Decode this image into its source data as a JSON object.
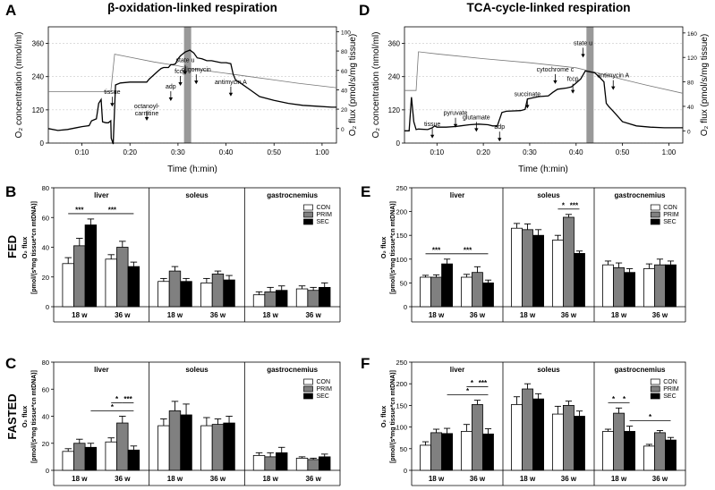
{
  "colors": {
    "CON": "#ffffff",
    "PRIM": "#808080",
    "SEC": "#000000",
    "event_bar": "#999999"
  },
  "chart_data": [
    {
      "id": "A",
      "type": "line",
      "title": "β-oxidation-linked respiration",
      "xlabel": "Time (h:min)",
      "ylabel": "O₂ concentration (nmol/ml)",
      "ylabel2": "O₂ flux (pmol/s/mg tissue)",
      "xlim": [
        3,
        63
      ],
      "ylim": [
        0,
        420
      ],
      "y2lim": [
        -15,
        105
      ],
      "xticks": [
        10,
        20,
        30,
        40,
        50,
        60
      ],
      "xticklabels": [
        "0:10",
        "0:20",
        "0:30",
        "0:40",
        "0:50",
        "1:00"
      ],
      "yticks": [
        0,
        120,
        240,
        360
      ],
      "yticklabels": [
        "0",
        "120",
        "240",
        "360"
      ],
      "y2ticks": [
        0,
        20,
        40,
        60,
        80,
        100
      ],
      "y2ticklabels": [
        "0",
        "20",
        "40",
        "60",
        "80",
        "100"
      ],
      "event_bar": {
        "x": 32
      },
      "annotations": [
        {
          "label": "tissue",
          "x": 16.3,
          "y": 177
        },
        {
          "label": "octanoyl-",
          "x": 23.5,
          "y": 126,
          "label2": "carnitine"
        },
        {
          "label": "adp",
          "x": 28.5,
          "y": 197
        },
        {
          "label": "fccp",
          "x": 30.5,
          "y": 252
        },
        {
          "label": "state u",
          "x": 31.5,
          "y": 292
        },
        {
          "label": "oligomycin",
          "x": 33.8,
          "y": 258
        },
        {
          "label": "antimycin A",
          "x": 41,
          "y": 214
        }
      ],
      "series": [
        {
          "name": "O2 concentration",
          "axis": "left",
          "x": [
            3,
            16,
            16.8,
            20,
            25,
            30,
            33,
            40,
            45,
            50,
            55,
            63
          ],
          "y": [
            186,
            186,
            321,
            310,
            293,
            279,
            268,
            252,
            240,
            228,
            216,
            200
          ]
        },
        {
          "name": "O2 flux",
          "axis": "right",
          "x": [
            3,
            5,
            7,
            9,
            10,
            11.5,
            12,
            13,
            13.5,
            14,
            14.3,
            15,
            15.5,
            16,
            16.1,
            16.5,
            17,
            18,
            20,
            22,
            23.5,
            24,
            26,
            26.5,
            27,
            28,
            28.5,
            29,
            29.5,
            30,
            30.5,
            31,
            31.5,
            32.5,
            33.3,
            34,
            35,
            36,
            37,
            38,
            39,
            40,
            41,
            41.5,
            42,
            43,
            45,
            47,
            50,
            53,
            56,
            59,
            62,
            63
          ],
          "y": [
            0,
            -2,
            -1,
            1,
            2,
            3,
            8,
            10,
            26,
            30,
            7,
            6,
            6,
            8,
            -10,
            -16,
            45,
            47,
            48,
            48,
            48,
            51,
            60,
            62,
            63,
            63,
            66,
            66,
            67,
            72,
            75,
            77,
            79,
            81,
            78,
            73,
            72,
            70,
            70,
            69,
            68,
            68,
            67,
            56,
            50,
            47,
            40,
            33,
            29,
            26,
            24,
            23,
            22,
            22
          ]
        }
      ]
    },
    {
      "id": "D",
      "type": "line",
      "title": "TCA-cycle-linked respiration",
      "xlabel": "Time (h:min)",
      "ylabel": "O₂ concentration (nmol/ml)",
      "ylabel2": "O₂ flux (pmol/s/mg tissue)",
      "xlim": [
        3,
        63
      ],
      "ylim": [
        0,
        420
      ],
      "y2lim": [
        -20,
        170
      ],
      "xticks": [
        10,
        20,
        30,
        40,
        50,
        60
      ],
      "xticklabels": [
        "0:10",
        "0:20",
        "0:30",
        "0:40",
        "0:50",
        "1:00"
      ],
      "yticks": [
        0,
        120,
        240,
        360
      ],
      "yticklabels": [
        "0",
        "120",
        "240",
        "360"
      ],
      "y2ticks": [
        0,
        40,
        80,
        120,
        160
      ],
      "y2ticklabels": [
        "0",
        "40",
        "80",
        "120",
        "160"
      ],
      "event_bar": {
        "x": 43
      },
      "annotations": [
        {
          "label": "tissue",
          "x": 9,
          "y": 62
        },
        {
          "label": "pyruvate",
          "x": 14,
          "y": 101
        },
        {
          "label": "glutamate",
          "x": 18.5,
          "y": 86
        },
        {
          "label": "adp",
          "x": 23.5,
          "y": 51
        },
        {
          "label": "succinate",
          "x": 29.5,
          "y": 170
        },
        {
          "label": "cytochrome c",
          "x": 35.5,
          "y": 259
        },
        {
          "label": "fccp",
          "x": 39.3,
          "y": 224
        },
        {
          "label": "state u",
          "x": 41.5,
          "y": 354
        },
        {
          "label": "antimycin A",
          "x": 48,
          "y": 237
        }
      ],
      "series": [
        {
          "name": "O2 concentration",
          "axis": "left",
          "x": [
            3,
            5.5,
            6,
            10,
            20,
            30,
            40,
            45,
            50,
            55,
            63
          ],
          "y": [
            190,
            190,
            330,
            322,
            305,
            290,
            272,
            252,
            230,
            210,
            180
          ]
        },
        {
          "name": "O2 flux",
          "axis": "right",
          "x": [
            3,
            4,
            4.5,
            5,
            5.5,
            6,
            8,
            9,
            9.5,
            10,
            12,
            14,
            15,
            17,
            19,
            21,
            22,
            23,
            24,
            25,
            28,
            29,
            29.5,
            30,
            32,
            34,
            35,
            36,
            38,
            39,
            40,
            41,
            42,
            44,
            45,
            46,
            46.5,
            47,
            48,
            50,
            53,
            56,
            59,
            62,
            63
          ],
          "y": [
            0,
            0,
            55,
            15,
            2,
            3,
            2,
            5,
            8,
            6,
            6,
            7,
            8,
            10,
            11,
            10,
            8,
            8,
            30,
            32,
            33,
            35,
            52,
            53,
            56,
            57,
            63,
            68,
            70,
            72,
            78,
            85,
            98,
            95,
            88,
            80,
            45,
            40,
            32,
            15,
            8,
            6,
            5,
            5,
            5
          ]
        }
      ]
    },
    {
      "id": "B",
      "row": "FED",
      "type": "bar",
      "ylabel": "O₂ flux",
      "ylabel2": "[pmol/(s*mg tissue*cn mtDNA)]",
      "ylim": [
        0,
        80
      ],
      "yticks": [
        0,
        20,
        40,
        60,
        80
      ],
      "yticklabels": [
        "0",
        "20",
        "40",
        "60",
        "80"
      ],
      "tissues": [
        "liver",
        "soleus",
        "gastrocnemius"
      ],
      "categories": [
        "18 w",
        "36 w"
      ],
      "legend": [
        "CON",
        "PRIM",
        "SEC"
      ],
      "series": [
        {
          "name": "CON",
          "values": [
            [
              29,
              32
            ],
            [
              17,
              16
            ],
            [
              8,
              12
            ]
          ],
          "errors": [
            [
              4,
              3
            ],
            [
              2,
              3
            ],
            [
              2,
              2
            ]
          ]
        },
        {
          "name": "PRIM",
          "values": [
            [
              41,
              40
            ],
            [
              24,
              22
            ],
            [
              10,
              11
            ]
          ],
          "errors": [
            [
              5,
              4
            ],
            [
              3,
              2
            ],
            [
              3,
              2
            ]
          ]
        },
        {
          "name": "SEC",
          "values": [
            [
              55,
              27
            ],
            [
              17,
              18
            ],
            [
              11,
              13
            ]
          ],
          "errors": [
            [
              4,
              3
            ],
            [
              2,
              3
            ],
            [
              3,
              3
            ]
          ]
        }
      ],
      "significance": [
        {
          "label": "***",
          "tissue": 0,
          "from": [
            0,
            0
          ],
          "to": [
            0,
            2
          ]
        },
        {
          "label": "***",
          "tissue": 0,
          "from": [
            0,
            2
          ],
          "to": [
            1,
            2
          ]
        }
      ]
    },
    {
      "id": "E",
      "row": "FED",
      "type": "bar",
      "ylabel": "O₂ flux",
      "ylabel2": "[pmol/(s*mg tissue*cn mtDNA)]",
      "ylim": [
        0,
        250
      ],
      "yticks": [
        0,
        50,
        100,
        150,
        200,
        250
      ],
      "yticklabels": [
        "0",
        "50",
        "100",
        "150",
        "200",
        "250"
      ],
      "tissues": [
        "liver",
        "soleus",
        "gastrocnemius"
      ],
      "categories": [
        "18 w",
        "36 w"
      ],
      "legend": [
        "CON",
        "PRIM",
        "SEC"
      ],
      "series": [
        {
          "name": "CON",
          "values": [
            [
              62,
              62
            ],
            [
              165,
              140
            ],
            [
              88,
              80
            ]
          ],
          "errors": [
            [
              4,
              6
            ],
            [
              10,
              10
            ],
            [
              8,
              10
            ]
          ]
        },
        {
          "name": "PRIM",
          "values": [
            [
              62,
              72
            ],
            [
              162,
              188
            ],
            [
              82,
              88
            ]
          ],
          "errors": [
            [
              5,
              12
            ],
            [
              12,
              6
            ],
            [
              10,
              12
            ]
          ]
        },
        {
          "name": "SEC",
          "values": [
            [
              90,
              50
            ],
            [
              150,
              112
            ],
            [
              72,
              88
            ]
          ],
          "errors": [
            [
              10,
              6
            ],
            [
              12,
              5
            ],
            [
              8,
              8
            ]
          ]
        }
      ],
      "significance": [
        {
          "label": "***",
          "tissue": 0,
          "from": [
            0,
            0
          ],
          "to": [
            0,
            2
          ]
        },
        {
          "label": "***",
          "tissue": 0,
          "from": [
            0,
            2
          ],
          "to": [
            1,
            2
          ]
        },
        {
          "label": "*",
          "tissue": 1,
          "from": [
            1,
            0
          ],
          "to": [
            1,
            1
          ]
        },
        {
          "label": "***",
          "tissue": 1,
          "from": [
            1,
            1
          ],
          "to": [
            1,
            2
          ]
        }
      ]
    },
    {
      "id": "C",
      "row": "FASTED",
      "type": "bar",
      "ylabel": "O₂ flux",
      "ylabel2": "[pmol/(s*mg tissue*cn mtDNA)]",
      "ylim": [
        0,
        80
      ],
      "yticks": [
        0,
        20,
        40,
        60,
        80
      ],
      "yticklabels": [
        "0",
        "20",
        "40",
        "60",
        "80"
      ],
      "tissues": [
        "liver",
        "soleus",
        "gastrocnemius"
      ],
      "categories": [
        "18 w",
        "36 w"
      ],
      "legend": [
        "CON",
        "PRIM",
        "SEC"
      ],
      "series": [
        {
          "name": "CON",
          "values": [
            [
              14,
              21
            ],
            [
              33,
              33
            ],
            [
              11,
              9
            ]
          ],
          "errors": [
            [
              2,
              3
            ],
            [
              5,
              6
            ],
            [
              2,
              1
            ]
          ]
        },
        {
          "name": "PRIM",
          "values": [
            [
              20,
              35
            ],
            [
              44,
              34
            ],
            [
              10,
              8
            ]
          ],
          "errors": [
            [
              3,
              5
            ],
            [
              7,
              4
            ],
            [
              3,
              1
            ]
          ]
        },
        {
          "name": "SEC",
          "values": [
            [
              17,
              15
            ],
            [
              41,
              35
            ],
            [
              13,
              10
            ]
          ],
          "errors": [
            [
              3,
              3
            ],
            [
              8,
              5
            ],
            [
              4,
              2
            ]
          ]
        }
      ],
      "significance": [
        {
          "label": "*",
          "tissue": 0,
          "from": [
            0,
            2
          ],
          "to": [
            1,
            2
          ]
        },
        {
          "label": "*",
          "tissue": 0,
          "from": [
            1,
            0
          ],
          "to": [
            1,
            1
          ]
        },
        {
          "label": "***",
          "tissue": 0,
          "from": [
            1,
            1
          ],
          "to": [
            1,
            2
          ]
        }
      ]
    },
    {
      "id": "F",
      "row": "FASTED",
      "type": "bar",
      "ylabel": "O₂ flux",
      "ylabel2": "[pmol/(s*mg tissue*cn mtDNA)]",
      "ylim": [
        0,
        250
      ],
      "yticks": [
        0,
        50,
        100,
        150,
        200,
        250
      ],
      "yticklabels": [
        "0",
        "50",
        "100",
        "150",
        "200",
        "250"
      ],
      "tissues": [
        "liver",
        "soleus",
        "gastrocnemius"
      ],
      "categories": [
        "18 w",
        "36 w"
      ],
      "legend": [
        "CON",
        "PRIM",
        "SEC"
      ],
      "series": [
        {
          "name": "CON",
          "values": [
            [
              58,
              90
            ],
            [
              152,
              130
            ],
            [
              90,
              56
            ]
          ],
          "errors": [
            [
              8,
              16
            ],
            [
              18,
              18
            ],
            [
              5,
              4
            ]
          ]
        },
        {
          "name": "PRIM",
          "values": [
            [
              87,
              152
            ],
            [
              188,
              150
            ],
            [
              132,
              87
            ]
          ],
          "errors": [
            [
              8,
              10
            ],
            [
              12,
              10
            ],
            [
              12,
              5
            ]
          ]
        },
        {
          "name": "SEC",
          "values": [
            [
              85,
              84
            ],
            [
              165,
              125
            ],
            [
              90,
              70
            ]
          ],
          "errors": [
            [
              12,
              12
            ],
            [
              12,
              12
            ],
            [
              12,
              6
            ]
          ]
        }
      ],
      "significance": [
        {
          "label": "*",
          "tissue": 0,
          "from": [
            0,
            2
          ],
          "to": [
            1,
            2
          ]
        },
        {
          "label": "*",
          "tissue": 0,
          "from": [
            1,
            0
          ],
          "to": [
            1,
            1
          ]
        },
        {
          "label": "***",
          "tissue": 0,
          "from": [
            1,
            1
          ],
          "to": [
            1,
            2
          ]
        },
        {
          "label": "*",
          "tissue": 2,
          "from": [
            0,
            0
          ],
          "to": [
            0,
            1
          ]
        },
        {
          "label": "*",
          "tissue": 2,
          "from": [
            0,
            1
          ],
          "to": [
            0,
            2
          ]
        },
        {
          "label": "*",
          "tissue": 2,
          "from": [
            0,
            2
          ],
          "to": [
            1,
            2
          ]
        }
      ]
    }
  ]
}
